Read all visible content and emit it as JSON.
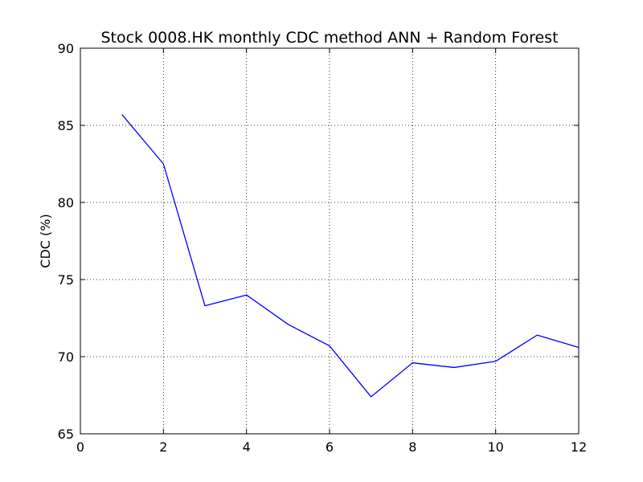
{
  "chart_data": {
    "type": "line",
    "title": "Stock 0008.HK monthly CDC method ANN + Random Forest",
    "xlabel": "",
    "ylabel": "CDC (%)",
    "xlim": [
      0,
      12
    ],
    "ylim": [
      65,
      90
    ],
    "xticks": [
      0,
      2,
      4,
      6,
      8,
      10,
      12
    ],
    "yticks": [
      65,
      70,
      75,
      80,
      85,
      90
    ],
    "grid": true,
    "series": [
      {
        "color": "#0000ff",
        "x": [
          1,
          2,
          3,
          4,
          5,
          6,
          7,
          8,
          9,
          10,
          11,
          12
        ],
        "y": [
          85.7,
          82.5,
          73.3,
          74.0,
          72.1,
          70.7,
          67.4,
          69.6,
          69.3,
          69.7,
          71.4,
          70.6
        ]
      }
    ]
  }
}
